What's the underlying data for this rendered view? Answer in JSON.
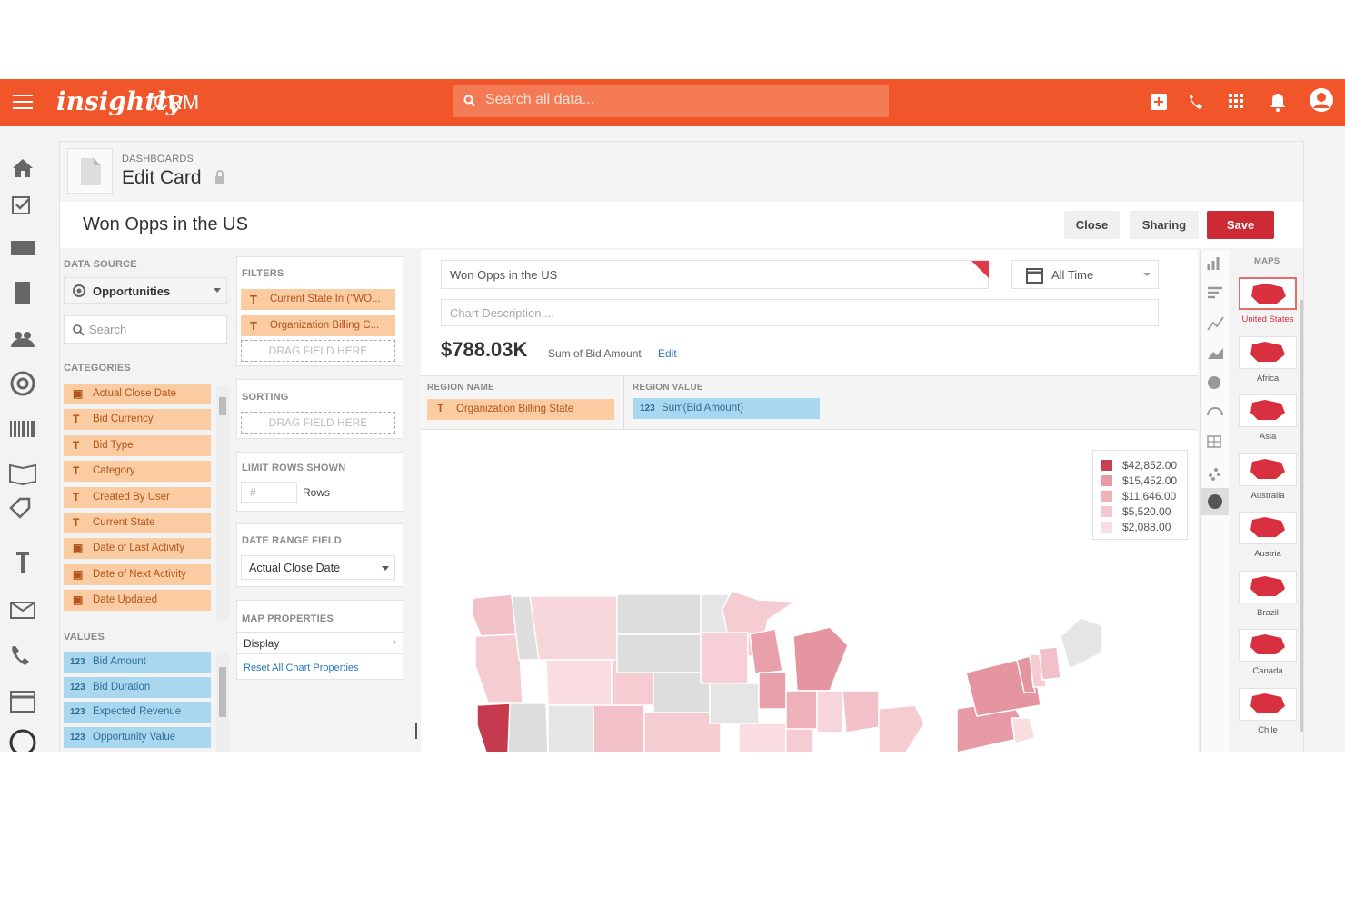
{
  "header": {
    "brand": "insightly",
    "product": "CRM",
    "search_placeholder": "Search all data..."
  },
  "breadcrumb": {
    "section": "DASHBOARDS",
    "title": "Edit Card"
  },
  "card_title": "Won Opps in the US",
  "buttons": [
    "Close",
    "Sharing",
    "Save"
  ],
  "left_panel": {
    "data_source_label": "DATA SOURCE",
    "data_source": "Opportunities",
    "search_placeholder": "Search",
    "categories_label": "CATEGORIES",
    "categories": [
      "Actual Close Date",
      "Bid Currency",
      "Bid Type",
      "Category",
      "Created By User",
      "Current State",
      "Date of Last Activity",
      "Date of Next Activity",
      "Date Updated"
    ],
    "values_label": "VALUES",
    "values": [
      "Bid Amount",
      "Bid Duration",
      "Expected Revenue",
      "Opportunity Value"
    ]
  },
  "config_panel": {
    "filters_label": "FILTERS",
    "filters": [
      "Current State In (\"WO...",
      "Organization Billing C..."
    ],
    "drag_hint": "DRAG FIELD HERE",
    "sorting_label": "SORTING",
    "limit_label": "LIMIT ROWS SHOWN",
    "limit_placeholder": "#",
    "rows_text": "Rows",
    "date_range_label": "DATE RANGE FIELD",
    "date_range_field": "Actual Close Date",
    "map_properties_label": "MAP PROPERTIES",
    "display": "Display",
    "reset": "Reset All Chart Properties"
  },
  "chart": {
    "title_input": "Won Opps in the US",
    "date_filter": "All Time",
    "description_placeholder": "Chart Description....",
    "total": "$788.03K",
    "total_caption": "Sum of Bid Amount",
    "edit": "Edit",
    "region_name_label": "REGION NAME",
    "region_name_field": "Organization Billing State",
    "region_value_label": "REGION VALUE",
    "region_value_field": "Sum(Bid Amount)",
    "legend": [
      {
        "label": "$42,852.00",
        "color": "#c9404f"
      },
      {
        "label": "$15,452.00",
        "color": "#e59aa5"
      },
      {
        "label": "$11,646.00",
        "color": "#eeb0b9"
      },
      {
        "label": "$5,520.00",
        "color": "#f4c8ce"
      },
      {
        "label": "$2,088.00",
        "color": "#f9dde1"
      }
    ]
  },
  "maps_panel": {
    "label": "MAPS",
    "maps": [
      "United States",
      "Africa",
      "Asia",
      "Australia",
      "Austria",
      "Brazil",
      "Canada",
      "Chile"
    ]
  }
}
